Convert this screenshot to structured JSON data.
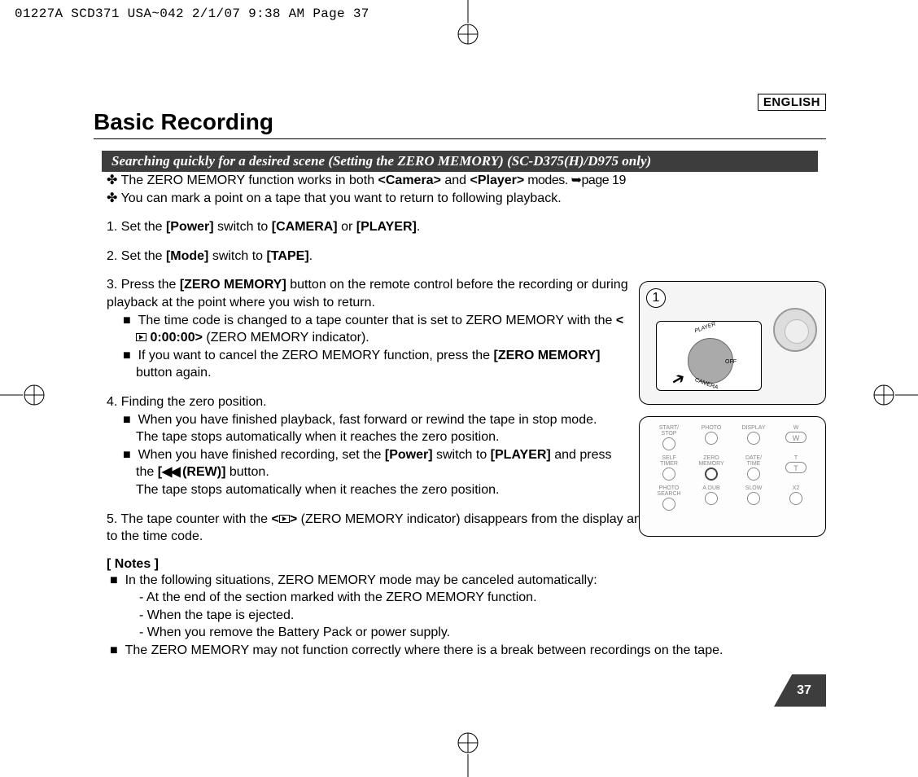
{
  "print_header": "01227A SCD371 USA~042  2/1/07 9:38 AM  Page 37",
  "language": "ENGLISH",
  "title": "Basic Recording",
  "subheading": "Searching quickly for a desired scene (Setting the ZERO MEMORY) (SC-D375(H)/D975 only)",
  "intro": {
    "line1_pre": "✤ The ZERO MEMORY function works in both ",
    "line1_b1": "<Camera>",
    "line1_mid": " and ",
    "line1_b2": "<Player>",
    "line1_post": " modes. ➥page 19",
    "line2": "✤ You can mark a point on a tape that you want to return to following playback."
  },
  "step1": {
    "pre": "1. Set the ",
    "b1": "[Power]",
    "mid": " switch to ",
    "b2": "[CAMERA]",
    "or": " or ",
    "b3": "[PLAYER]",
    "end": "."
  },
  "step2": {
    "pre": "2. Set the ",
    "b1": "[Mode]",
    "mid": " switch to ",
    "b2": "[TAPE]",
    "end": "."
  },
  "step3": {
    "pre": "3. Press the ",
    "b1": "[ZERO MEMORY]",
    "post": " button on the remote control before the recording or during playback at the point where you wish to return.",
    "sub1_pre": "The time code is changed to a tape counter that is set to ZERO MEMORY with the ",
    "sub1_code_pre": "<",
    "sub1_code": " 0:00:00>",
    "sub1_post": " (ZERO MEMORY indicator).",
    "sub2_pre": "If you want to cancel the ZERO MEMORY function, press the ",
    "sub2_b": "[ZERO MEMORY]",
    "sub2_post": " button again."
  },
  "step4": {
    "title": "4. Finding the zero position.",
    "sub1a": "When you have finished playback, fast forward or rewind the tape in stop mode.",
    "sub1b": "The tape stops automatically when it reaches the zero position.",
    "sub2_pre": "When you have finished recording, set the ",
    "sub2_b1": "[Power]",
    "sub2_mid": " switch to ",
    "sub2_b2": "[PLAYER]",
    "sub2_mid2": " and press the ",
    "sub2_b3_pre": "[",
    "sub2_b3_sym": "◀◀",
    "sub2_b3_mid": "(REW)]",
    "sub2_b3_post": " button.",
    "sub2b": "The tape stops automatically when it reaches the zero position."
  },
  "step5": {
    "pre": "5. The tape counter with the ",
    "code_pre": "<",
    "code_post": ">",
    "post": " (ZERO MEMORY indicator) disappears from the display and the tape counter is changed to the time code."
  },
  "notes": {
    "title": "[ Notes ]",
    "n1": "In the following situations, ZERO MEMORY mode may be canceled automatically:",
    "n1a": "-   At the end of the section marked with the ZERO MEMORY function.",
    "n1b": "-   When the tape is ejected.",
    "n1c": "-   When you remove the Battery Pack or power supply.",
    "n2": "The ZERO MEMORY may not function correctly where there is a break between recordings on the tape."
  },
  "figure1": {
    "number": "1",
    "label_player": "PLAYER",
    "label_off": "OFF",
    "label_camera": "CAMERA"
  },
  "figure2": {
    "buttons": [
      "START/\nSTOP",
      "PHOTO",
      "DISPLAY",
      "W",
      "SELF\nTIMER",
      "ZERO\nMEMORY",
      "DATE/\nTIME",
      "T",
      "PHOTO\nSEARCH",
      "A.DUB",
      "SLOW",
      "X2"
    ]
  },
  "page_number": "37",
  "colors": {
    "heading_bg": "#3d3d3d",
    "heading_text": "#ffffff",
    "body_text": "#000000",
    "page_bg": "#ffffff"
  }
}
